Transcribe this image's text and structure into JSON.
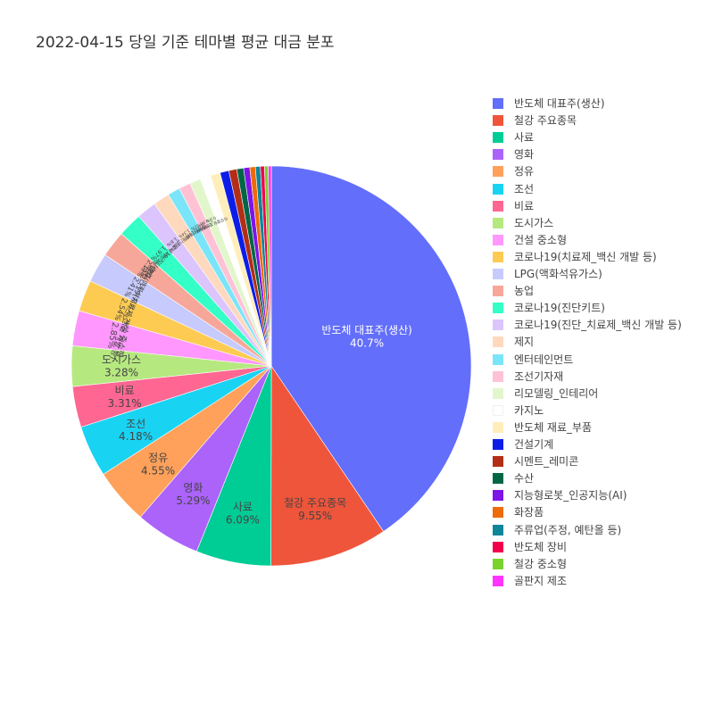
{
  "chart_data": {
    "type": "pie",
    "title": "2022-04-15 당일 기준 테마별 평균 대금 분포",
    "direction": "clockwise",
    "sort": "descending",
    "legend_position": "right",
    "slices": [
      {
        "label": "반도체 대표주(생산)",
        "value": 40.7,
        "color": "#636efa",
        "text": "40.7%"
      },
      {
        "label": "철강 주요종목",
        "value": 9.55,
        "color": "#EF553B",
        "text": "9.55%"
      },
      {
        "label": "사료",
        "value": 6.09,
        "color": "#00cc96",
        "text": "6.09%"
      },
      {
        "label": "영화",
        "value": 5.29,
        "color": "#ab63fa",
        "text": "5.29%"
      },
      {
        "label": "정유",
        "value": 4.55,
        "color": "#FFA15A",
        "text": "4.55%"
      },
      {
        "label": "조선",
        "value": 4.18,
        "color": "#19d3f3",
        "text": "4.18%"
      },
      {
        "label": "비료",
        "value": 3.31,
        "color": "#FF6692",
        "text": "3.31%"
      },
      {
        "label": "도시가스",
        "value": 3.28,
        "color": "#B6E880",
        "text": "3.28%"
      },
      {
        "label": "건설 중소형",
        "value": 2.85,
        "color": "#FF97FF",
        "text": "2.85%"
      },
      {
        "label": "코로나19(치료제_백신 개발 등)",
        "value": 2.54,
        "color": "#FECB52",
        "text": "2.54%"
      },
      {
        "label": "LPG(액화석유가스)",
        "value": 2.41,
        "color": "#c6cafd",
        "text": "2.41%"
      },
      {
        "label": "농업",
        "value": 2.13,
        "color": "#f7a799",
        "text": "2.13%"
      },
      {
        "label": "코로나19(진단키트)",
        "value": 1.97,
        "color": "#33ffc6",
        "text": "1.97%"
      },
      {
        "label": "코로나19(진단_치료제_백신 개발 등)",
        "value": 1.6,
        "color": "#dcc4fd",
        "text": "1.6%"
      },
      {
        "label": "제지",
        "value": 1.34,
        "color": "#ffd9bd",
        "text": "1.34%"
      },
      {
        "label": "엔터테인먼트",
        "value": 1.0,
        "color": "#7ae5f8",
        "text": "1%"
      },
      {
        "label": "조선기자재",
        "value": 0.95,
        "color": "#ffc2d4",
        "text": "0.95%"
      },
      {
        "label": "리모델링_인테리어",
        "value": 0.9,
        "color": "#e2f6cc",
        "text": "0.9%"
      },
      {
        "label": "카지노",
        "value": 0.85,
        "color": "#ffffff",
        "text": ""
      },
      {
        "label": "반도체 재료_부품",
        "value": 0.8,
        "color": "#ffeeba",
        "text": ""
      },
      {
        "label": "건설기계",
        "value": 0.72,
        "color": "#0d1de8",
        "text": ""
      },
      {
        "label": "시멘트_레미콘",
        "value": 0.65,
        "color": "#b22e17",
        "text": ""
      },
      {
        "label": "수산",
        "value": 0.55,
        "color": "#006646",
        "text": ""
      },
      {
        "label": "지능형로봇_인공지능(AI)",
        "value": 0.5,
        "color": "#7d14e8",
        "text": ""
      },
      {
        "label": "화장품",
        "value": 0.45,
        "color": "#ee6a0a",
        "text": ""
      },
      {
        "label": "주류업(주정, 예탄올 등)",
        "value": 0.4,
        "color": "#0f8599",
        "text": ""
      },
      {
        "label": "반도체 장비",
        "value": 0.33,
        "color": "#f2004c",
        "text": ""
      },
      {
        "label": "철강 중소형",
        "value": 0.3,
        "color": "#7ad32d",
        "text": ""
      },
      {
        "label": "골판지 제조",
        "value": 0.25,
        "color": "#ff33ff",
        "text": ""
      }
    ]
  }
}
